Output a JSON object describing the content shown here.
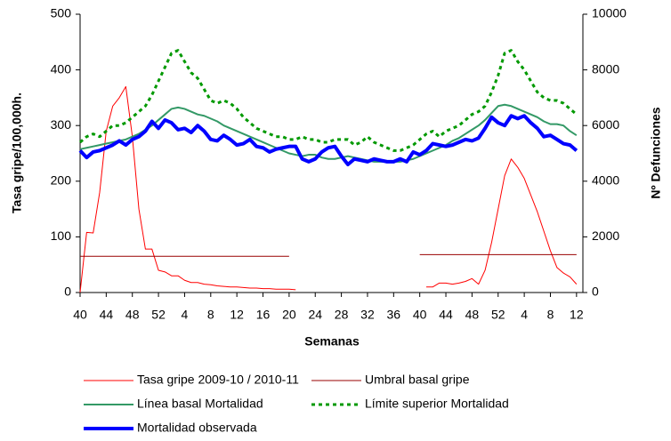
{
  "chart_data": {
    "type": "line",
    "x_label": "Semanas",
    "y_label": "Tasa gripe/100,000h.",
    "y2_label": "Nº Defunciones",
    "categories": [
      "40",
      null,
      null,
      null,
      "44",
      null,
      null,
      null,
      "48",
      null,
      null,
      null,
      "52",
      null,
      null,
      null,
      "4",
      null,
      null,
      null,
      "8",
      null,
      null,
      null,
      "12",
      null,
      null,
      null,
      "16",
      null,
      null,
      null,
      "20",
      null,
      null,
      null,
      "24",
      null,
      null,
      null,
      "28",
      null,
      null,
      null,
      "32",
      null,
      null,
      null,
      "36",
      null,
      null,
      null,
      "40",
      null,
      null,
      null,
      "44",
      null,
      null,
      null,
      "48",
      null,
      null,
      null,
      "52",
      null,
      null,
      null,
      "4",
      null,
      null,
      null,
      "8",
      null,
      null,
      null,
      "12"
    ],
    "ylim": [
      0,
      500
    ],
    "yticks": [
      0,
      100,
      200,
      300,
      400,
      500
    ],
    "y2lim": [
      0,
      10000
    ],
    "y2ticks": [
      0,
      2000,
      4000,
      6000,
      8000,
      10000
    ],
    "series": [
      {
        "name": "Tasa gripe 2009-10 / 2010-11",
        "color": "#ff0000",
        "axis": "y",
        "values": [
          0,
          108,
          107,
          180,
          290,
          335,
          350,
          370,
          280,
          150,
          78,
          78,
          40,
          37,
          30,
          30,
          22,
          18,
          18,
          15,
          14,
          12,
          11,
          10,
          10,
          9,
          8,
          8,
          7,
          7,
          6,
          6,
          6,
          5,
          null,
          null,
          null,
          null,
          null,
          null,
          null,
          null,
          null,
          null,
          null,
          null,
          null,
          null,
          null,
          null,
          null,
          null,
          null,
          10,
          10,
          17,
          17,
          15,
          17,
          20,
          25,
          15,
          40,
          90,
          150,
          210,
          240,
          225,
          205,
          175,
          145,
          110,
          75,
          45,
          35,
          28,
          15
        ]
      },
      {
        "name": "Umbral basal gripe",
        "color": "#990000",
        "axis": "y",
        "values": [
          65,
          65,
          65,
          65,
          65,
          65,
          65,
          65,
          65,
          65,
          65,
          65,
          65,
          65,
          65,
          65,
          65,
          65,
          65,
          65,
          65,
          65,
          65,
          65,
          65,
          65,
          65,
          65,
          65,
          65,
          65,
          65,
          65,
          null,
          null,
          null,
          null,
          null,
          null,
          null,
          null,
          null,
          null,
          null,
          null,
          null,
          null,
          null,
          null,
          null,
          null,
          null,
          68,
          68,
          68,
          68,
          68,
          68,
          68,
          68,
          68,
          68,
          68,
          68,
          68,
          68,
          68,
          68,
          68,
          68,
          68,
          68,
          68,
          68,
          68,
          68,
          68
        ]
      },
      {
        "name": "Línea basal Mortalidad",
        "color": "#339966",
        "axis": "y2",
        "values": [
          5150,
          5200,
          5250,
          5300,
          5350,
          5400,
          5450,
          5500,
          5600,
          5700,
          5850,
          6000,
          6200,
          6400,
          6600,
          6650,
          6600,
          6500,
          6400,
          6350,
          6250,
          6150,
          6000,
          5900,
          5800,
          5700,
          5600,
          5500,
          5400,
          5300,
          5200,
          5100,
          5000,
          4950,
          4900,
          4950,
          4950,
          4850,
          4800,
          4800,
          4850,
          4900,
          4850,
          4800,
          4750,
          4700,
          4700,
          4700,
          4700,
          4700,
          4750,
          4800,
          4900,
          5000,
          5100,
          5200,
          5300,
          5450,
          5550,
          5700,
          5850,
          6000,
          6200,
          6450,
          6700,
          6750,
          6700,
          6600,
          6500,
          6400,
          6300,
          6150,
          6050,
          6050,
          6000,
          5800,
          5650
        ]
      },
      {
        "name": "Límite superior Mortalidad",
        "color": "#009900",
        "axis": "y2",
        "style": "dotted",
        "values": [
          5400,
          5600,
          5700,
          5600,
          5800,
          6000,
          6000,
          6100,
          6300,
          6500,
          6700,
          7100,
          7600,
          8100,
          8600,
          8700,
          8300,
          7900,
          7700,
          7300,
          6900,
          6800,
          6900,
          6800,
          6600,
          6300,
          6100,
          5900,
          5800,
          5700,
          5600,
          5600,
          5500,
          5500,
          5600,
          5500,
          5500,
          5400,
          5400,
          5500,
          5500,
          5500,
          5300,
          5400,
          5600,
          5400,
          5300,
          5200,
          5100,
          5100,
          5200,
          5300,
          5500,
          5700,
          5800,
          5600,
          5800,
          5900,
          6000,
          6200,
          6400,
          6500,
          6700,
          7200,
          7800,
          8600,
          8700,
          8300,
          8000,
          7600,
          7200,
          7000,
          6900,
          6900,
          6800,
          6600,
          6400
        ]
      },
      {
        "name": "Mortalidad observada",
        "color": "#0000ff",
        "axis": "y2",
        "values": [
          5100,
          4850,
          5050,
          5100,
          5200,
          5300,
          5450,
          5300,
          5500,
          5600,
          5800,
          6150,
          5900,
          6200,
          6100,
          5850,
          5900,
          5750,
          6000,
          5800,
          5500,
          5450,
          5650,
          5500,
          5300,
          5350,
          5500,
          5250,
          5200,
          5050,
          5150,
          5200,
          5250,
          5250,
          4800,
          4700,
          4800,
          5050,
          5200,
          5250,
          4900,
          4600,
          4800,
          4750,
          4700,
          4800,
          4750,
          4700,
          4700,
          4800,
          4700,
          5050,
          4950,
          5100,
          5350,
          5300,
          5250,
          5300,
          5400,
          5500,
          5450,
          5550,
          5900,
          6300,
          6100,
          6000,
          6350,
          6250,
          6350,
          6100,
          5900,
          5600,
          5650,
          5500,
          5350,
          5300,
          5100
        ]
      }
    ]
  }
}
